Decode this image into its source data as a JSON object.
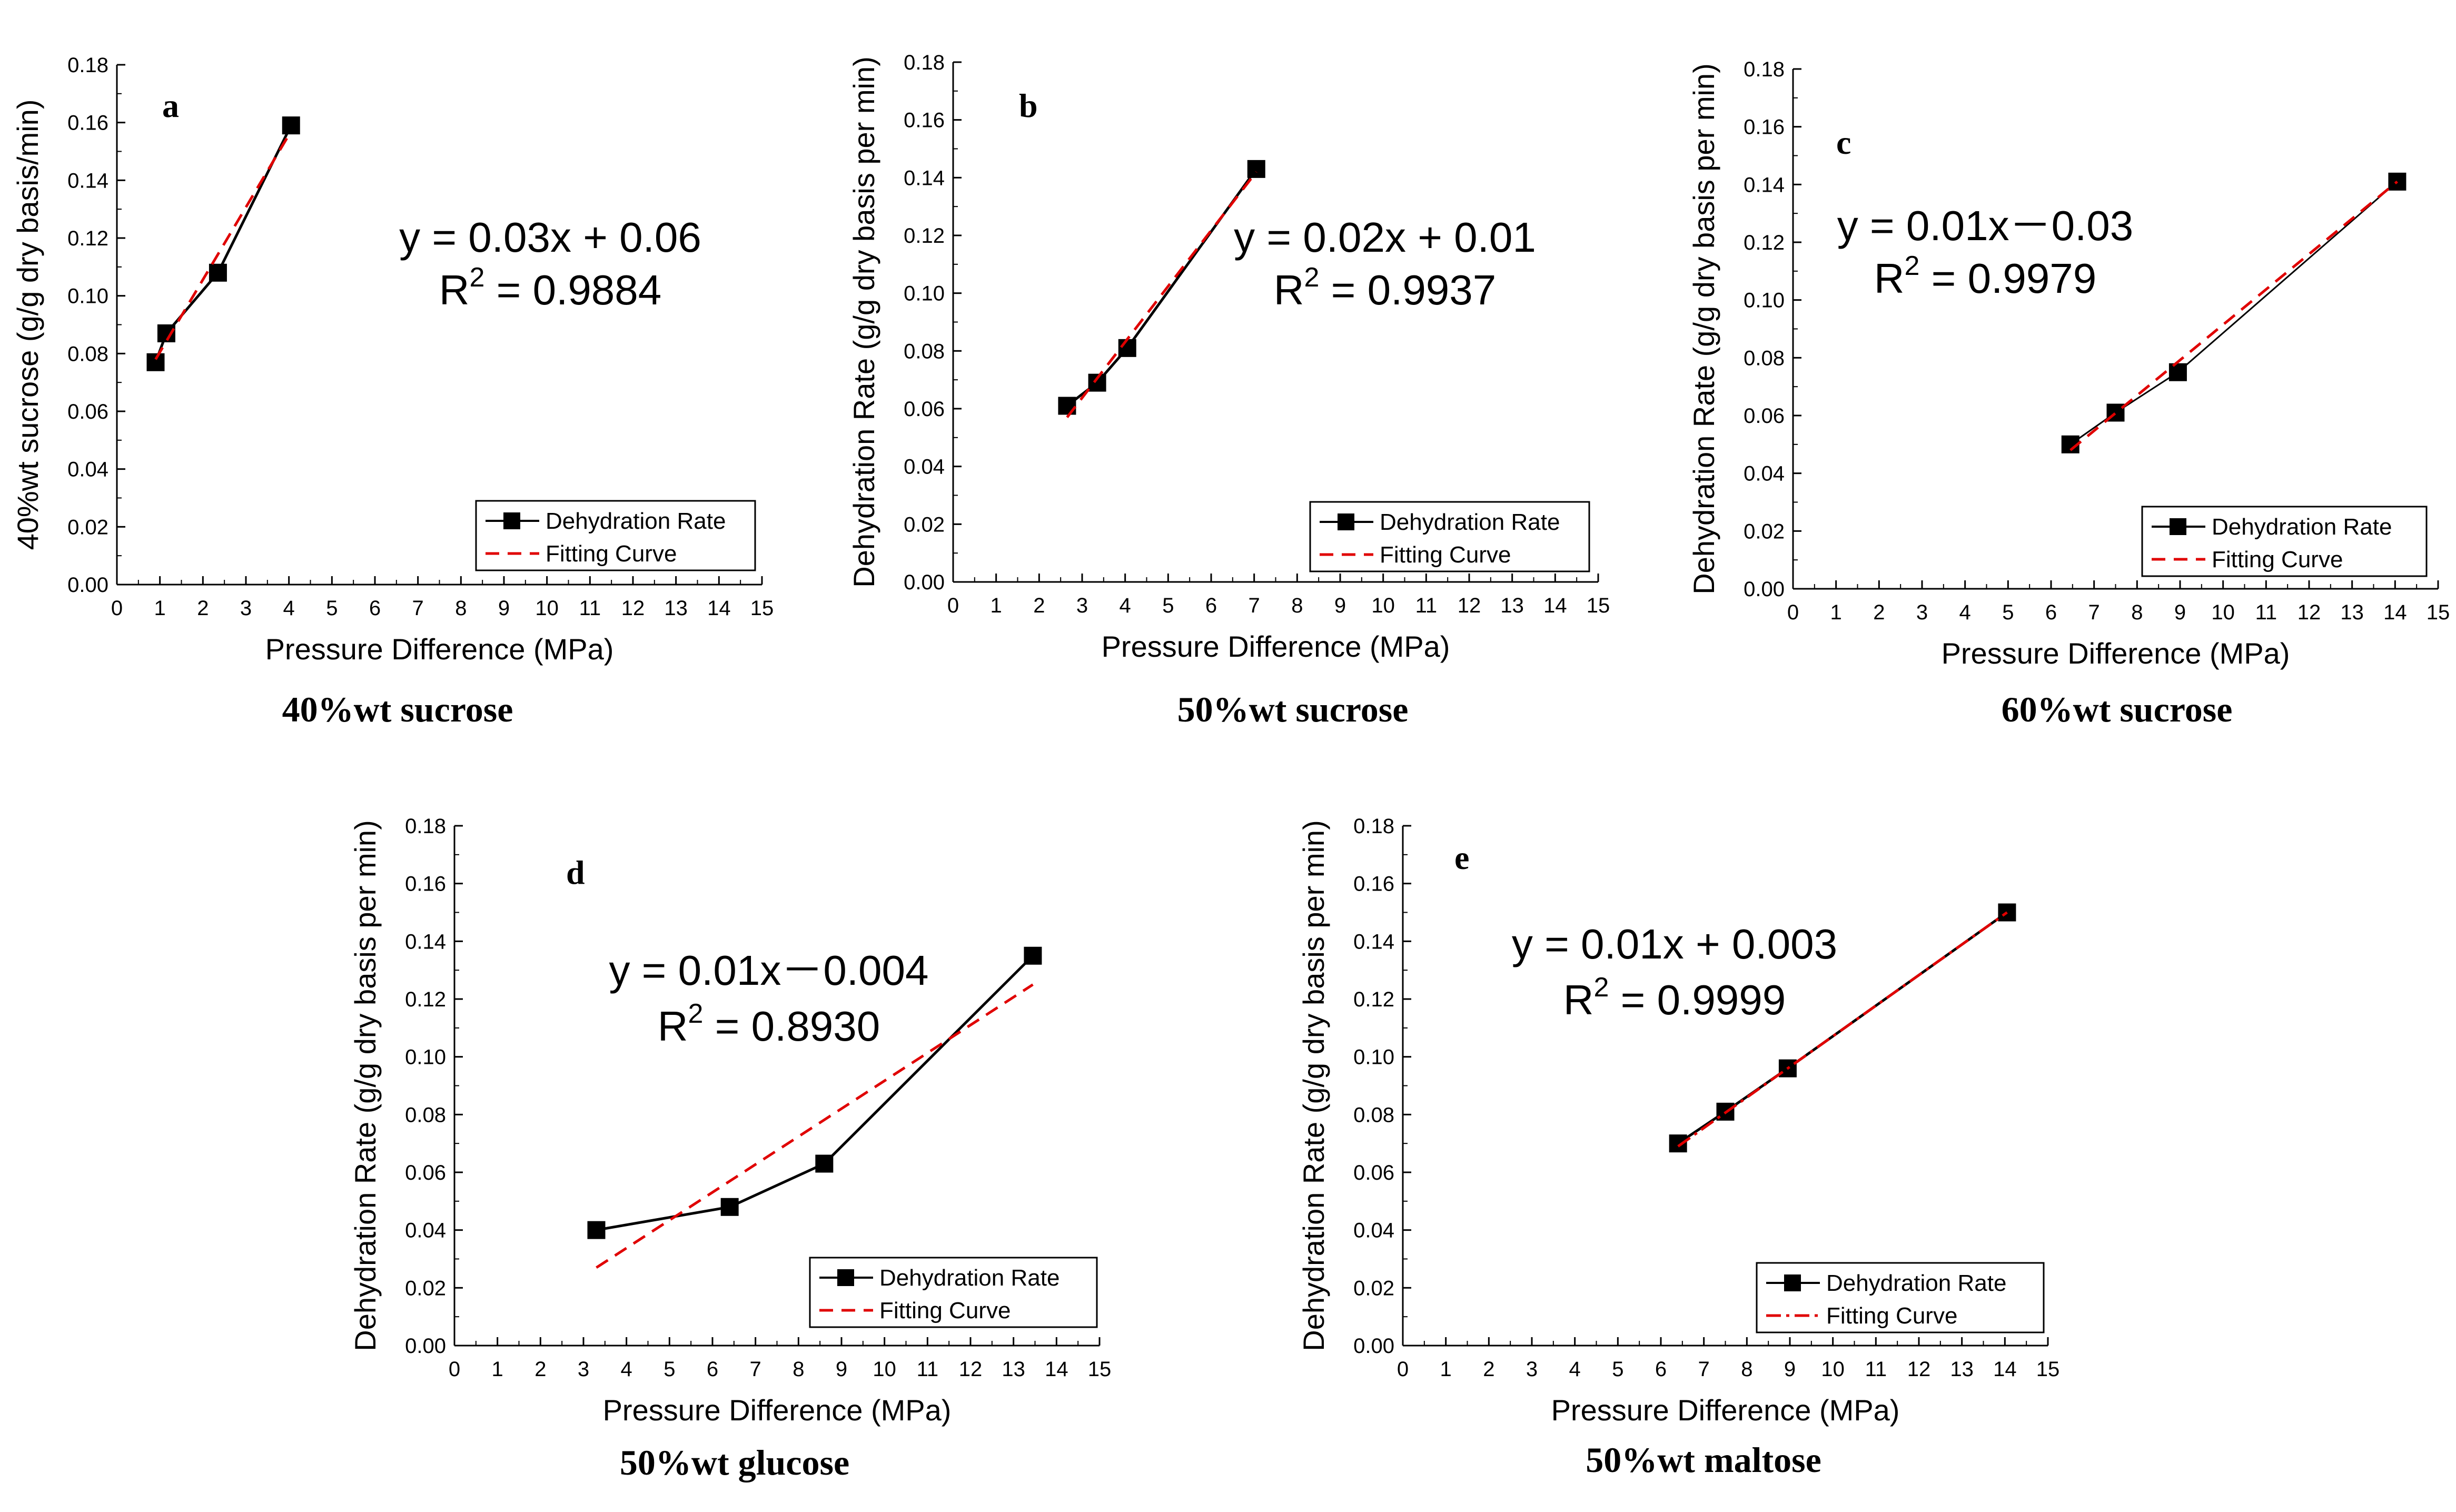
{
  "colors": {
    "data_line": "#000000",
    "marker": "#000000",
    "fit_line": "#e00000",
    "axis": "#000000",
    "background": "#ffffff"
  },
  "chart_data": [
    {
      "type": "line",
      "panel_letter": "a",
      "caption": "40%wt sucrose",
      "xlabel": "Pressure Difference (MPa)",
      "ylabel": "40%wt sucrose (g/g dry basis/min)",
      "xlim": [
        0,
        15
      ],
      "ylim": [
        0,
        0.18
      ],
      "x_ticks": [
        "0",
        "1",
        "2",
        "3",
        "4",
        "5",
        "6",
        "7",
        "8",
        "9",
        "10",
        "11",
        "12",
        "13",
        "14",
        "15"
      ],
      "y_ticks": [
        "0.00",
        "0.02",
        "0.04",
        "0.06",
        "0.08",
        "0.10",
        "0.12",
        "0.14",
        "0.16",
        "0.18"
      ],
      "series": [
        {
          "name": "Dehydration Rate",
          "style": "solid-square-markers",
          "x": [
            0.9,
            1.15,
            2.35,
            4.05
          ],
          "y": [
            0.077,
            0.087,
            0.108,
            0.159
          ]
        },
        {
          "name": "Fitting Curve",
          "style": "dashed",
          "x": [
            0.9,
            4.05
          ],
          "y": [
            0.078,
            0.157
          ]
        }
      ],
      "equation": "y = 0.03x + 0.06",
      "r2_label": "R",
      "r2_sup": "2",
      "r2_value": " = 0.9884",
      "legend_position": "bottom-right"
    },
    {
      "type": "line",
      "panel_letter": "b",
      "caption": "50%wt sucrose",
      "xlabel": "Pressure Difference (MPa)",
      "ylabel": "Dehydration Rate (g/g dry basis per min)",
      "xlim": [
        0,
        15
      ],
      "ylim": [
        0,
        0.18
      ],
      "x_ticks": [
        "0",
        "1",
        "2",
        "3",
        "4",
        "5",
        "6",
        "7",
        "8",
        "9",
        "10",
        "11",
        "12",
        "13",
        "14",
        "15"
      ],
      "y_ticks": [
        "0.00",
        "0.02",
        "0.04",
        "0.06",
        "0.08",
        "0.10",
        "0.12",
        "0.14",
        "0.16",
        "0.18"
      ],
      "series": [
        {
          "name": "Dehydration Rate",
          "style": "solid-square-markers",
          "x": [
            2.65,
            3.35,
            4.05,
            7.05
          ],
          "y": [
            0.061,
            0.069,
            0.081,
            0.143
          ]
        },
        {
          "name": "Fitting Curve",
          "style": "dashed",
          "x": [
            2.65,
            7.05
          ],
          "y": [
            0.057,
            0.142
          ]
        }
      ],
      "equation": "y = 0.02x + 0.01",
      "r2_label": "R",
      "r2_sup": "2",
      "r2_value": " = 0.9937",
      "legend_position": "bottom-right"
    },
    {
      "type": "line",
      "panel_letter": "c",
      "caption": "60%wt sucrose",
      "xlabel": "Pressure Difference (MPa)",
      "ylabel": "Dehydration Rate (g/g dry basis per min)",
      "xlim": [
        0,
        15
      ],
      "ylim": [
        0,
        0.18
      ],
      "x_ticks": [
        "0",
        "1",
        "2",
        "3",
        "4",
        "5",
        "6",
        "7",
        "8",
        "9",
        "10",
        "11",
        "12",
        "13",
        "14",
        "15"
      ],
      "y_ticks": [
        "0.00",
        "0.02",
        "0.04",
        "0.06",
        "0.08",
        "0.10",
        "0.12",
        "0.14",
        "0.16",
        "0.18"
      ],
      "series": [
        {
          "name": "Dehydration Rate",
          "style": "thin-square-markers",
          "x": [
            6.45,
            7.5,
            8.95,
            14.05
          ],
          "y": [
            0.05,
            0.061,
            0.075,
            0.141
          ]
        },
        {
          "name": "Fitting Curve",
          "style": "dashed",
          "x": [
            6.45,
            14.05
          ],
          "y": [
            0.048,
            0.141
          ]
        }
      ],
      "equation": "y = 0.01x－0.03",
      "r2_label": "R",
      "r2_sup": "2",
      "r2_value": " = 0.9979",
      "legend_position": "bottom-right"
    },
    {
      "type": "line",
      "panel_letter": "d",
      "caption": "50%wt glucose",
      "xlabel": "Pressure Difference (MPa)",
      "ylabel": "Dehydration Rate (g/g dry basis per min)",
      "xlim": [
        0,
        15
      ],
      "ylim": [
        0,
        0.18
      ],
      "x_ticks": [
        "0",
        "1",
        "2",
        "3",
        "4",
        "5",
        "6",
        "7",
        "8",
        "9",
        "10",
        "11",
        "12",
        "13",
        "14",
        "15"
      ],
      "y_ticks": [
        "0.00",
        "0.02",
        "0.04",
        "0.06",
        "0.08",
        "0.10",
        "0.12",
        "0.14",
        "0.16",
        "0.18"
      ],
      "series": [
        {
          "name": "Dehydration Rate",
          "style": "solid-square-markers",
          "x": [
            3.3,
            6.4,
            8.6,
            13.45
          ],
          "y": [
            0.04,
            0.048,
            0.063,
            0.135
          ]
        },
        {
          "name": "Fitting Curve",
          "style": "dashed",
          "x": [
            3.3,
            13.45
          ],
          "y": [
            0.027,
            0.125
          ]
        }
      ],
      "equation": "y = 0.01x－0.004",
      "r2_label": "R",
      "r2_sup": "2",
      "r2_value": " = 0.8930",
      "legend_position": "bottom-right"
    },
    {
      "type": "line",
      "panel_letter": "e",
      "caption": "50%wt maltose",
      "xlabel": "Pressure Difference (MPa)",
      "ylabel": "Dehydration Rate (g/g dry basis per min)",
      "xlim": [
        0,
        15
      ],
      "ylim": [
        0,
        0.18
      ],
      "x_ticks": [
        "0",
        "1",
        "2",
        "3",
        "4",
        "5",
        "6",
        "7",
        "8",
        "9",
        "10",
        "11",
        "12",
        "13",
        "14",
        "15"
      ],
      "y_ticks": [
        "0.00",
        "0.02",
        "0.04",
        "0.06",
        "0.08",
        "0.10",
        "0.12",
        "0.14",
        "0.16",
        "0.18"
      ],
      "series": [
        {
          "name": "Dehydration Rate",
          "style": "solid-square-markers",
          "x": [
            6.4,
            7.5,
            8.95,
            14.05
          ],
          "y": [
            0.07,
            0.081,
            0.096,
            0.15
          ]
        },
        {
          "name": "Fitting Curve",
          "style": "dashdot",
          "x": [
            6.4,
            14.05
          ],
          "y": [
            0.069,
            0.15
          ]
        }
      ],
      "equation": "y = 0.01x + 0.003",
      "r2_label": "R",
      "r2_sup": "2",
      "r2_value": " = 0.9999",
      "legend_position": "bottom-right"
    }
  ]
}
